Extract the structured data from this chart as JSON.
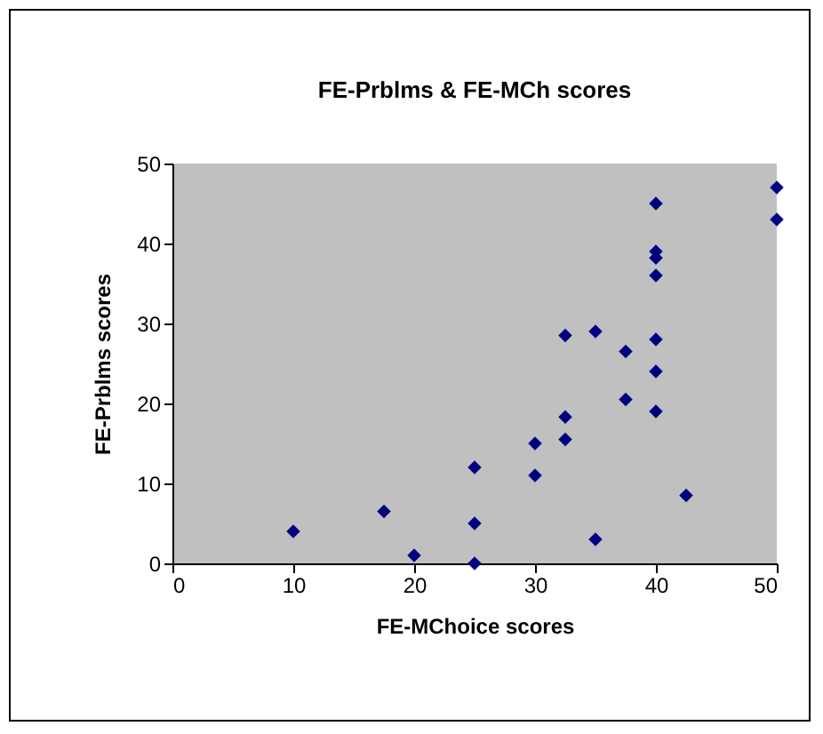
{
  "chart_data": {
    "type": "scatter",
    "title": "FE-Prblms & FE-MCh scores",
    "xlabel": "FE-MChoice  scores",
    "ylabel": "FE-Prblms scores",
    "x": [
      10,
      17.5,
      20,
      25,
      25,
      25,
      30,
      30,
      32.5,
      32.5,
      32.5,
      35,
      35,
      37.5,
      37.5,
      40,
      40,
      40,
      40,
      40,
      40,
      40,
      42.5,
      50,
      50
    ],
    "series": [
      {
        "color": "#000080",
        "values": [
          4,
          6.5,
          1,
          12,
          5,
          0,
          15,
          11,
          28.5,
          18.3,
          15.5,
          29,
          3,
          26.5,
          20.5,
          45,
          39,
          38.2,
          36,
          28,
          24,
          19,
          8.5,
          47,
          43
        ]
      }
    ],
    "xlim": [
      0,
      50
    ],
    "xticks": [
      0,
      10,
      20,
      30,
      40,
      50
    ],
    "ylim": [
      0,
      50
    ],
    "yticks": [
      0,
      10,
      20,
      30,
      40,
      50
    ],
    "grid": false,
    "legend": false,
    "marker": "diamond"
  }
}
